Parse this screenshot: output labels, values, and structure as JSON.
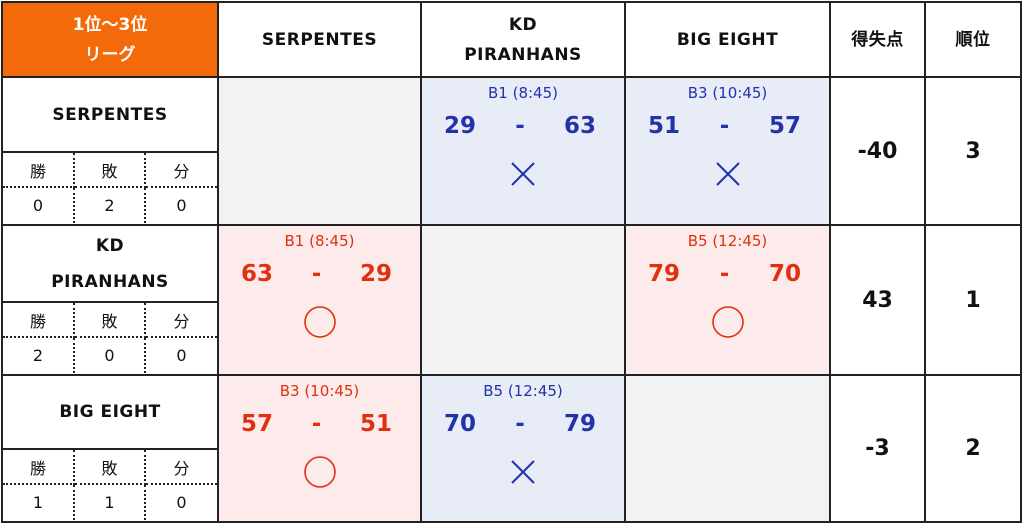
{
  "corner": {
    "line1": "1位～3位",
    "line2": "リーグ"
  },
  "col_headers": [
    {
      "line1": "SERPENTES",
      "line2": ""
    },
    {
      "line1": "KD",
      "line2": "PIRANHANS"
    },
    {
      "line1": "BIG EIGHT",
      "line2": ""
    },
    {
      "line1": "得失点",
      "line2": ""
    },
    {
      "line1": "順位",
      "line2": ""
    }
  ],
  "wlt_labels": {
    "win": "勝",
    "loss": "敗",
    "draw": "分"
  },
  "teams": [
    {
      "name_line1": "SERPENTES",
      "name_line2": "",
      "wins": "0",
      "losses": "2",
      "draws": "0",
      "diff": "-40",
      "rank": "3",
      "games": [
        null,
        {
          "slot": "B1 (8:45)",
          "score_for": "29",
          "dash": "-",
          "score_against": "63",
          "result": "lose"
        },
        {
          "slot": "B3 (10:45)",
          "score_for": "51",
          "dash": "-",
          "score_against": "57",
          "result": "lose"
        }
      ]
    },
    {
      "name_line1": "KD",
      "name_line2": "PIRANHANS",
      "wins": "2",
      "losses": "0",
      "draws": "0",
      "diff": "43",
      "rank": "1",
      "games": [
        {
          "slot": "B1 (8:45)",
          "score_for": "63",
          "dash": "-",
          "score_against": "29",
          "result": "win"
        },
        null,
        {
          "slot": "B5 (12:45)",
          "score_for": "79",
          "dash": "-",
          "score_against": "70",
          "result": "win"
        }
      ]
    },
    {
      "name_line1": "BIG EIGHT",
      "name_line2": "",
      "wins": "1",
      "losses": "1",
      "draws": "0",
      "diff": "-3",
      "rank": "2",
      "games": [
        {
          "slot": "B3 (10:45)",
          "score_for": "57",
          "dash": "-",
          "score_against": "51",
          "result": "win"
        },
        {
          "slot": "B5 (12:45)",
          "score_for": "70",
          "dash": "-",
          "score_against": "79",
          "result": "lose"
        },
        null
      ]
    }
  ],
  "colors": {
    "corner_bg": "#f26a0a",
    "win_text": "#e03010",
    "lose_text": "#2233aa",
    "win_bg": "#fdeaea",
    "lose_bg": "#e8ecf7",
    "self_bg": "#f2f2f2"
  },
  "icons": {
    "win": "circle-icon",
    "lose": "cross-icon"
  }
}
